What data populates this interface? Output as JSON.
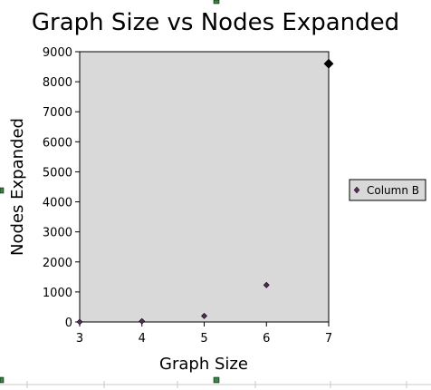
{
  "chart_data": {
    "type": "scatter",
    "title": "Graph Size vs Nodes Expanded",
    "xlabel": "Graph Size",
    "ylabel": "Nodes Expanded",
    "xlim": [
      3,
      7
    ],
    "ylim": [
      0,
      9000
    ],
    "xticks": [
      3,
      4,
      5,
      6,
      7
    ],
    "yticks": [
      0,
      1000,
      2000,
      3000,
      4000,
      5000,
      6000,
      7000,
      8000,
      9000
    ],
    "series": [
      {
        "name": "Column B",
        "x": [
          3,
          4,
          5,
          6,
          7
        ],
        "y": [
          2,
          25,
          200,
          1230,
          8600
        ],
        "color": "#5a2a5a"
      }
    ],
    "plot_background": "#d9d9d9",
    "grid": false,
    "legend_position": "right"
  }
}
